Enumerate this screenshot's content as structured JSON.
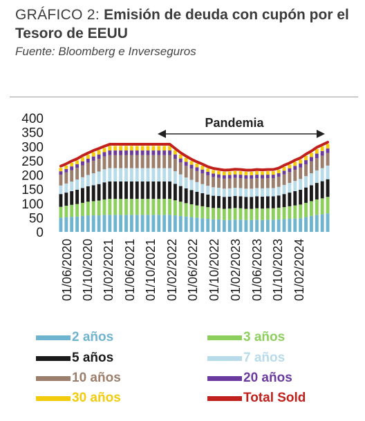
{
  "header": {
    "title_lead": "GRÁFICO 2: ",
    "title_rest": "Emisión de deuda con cupón por el Tesoro de EEUU",
    "source": "Fuente: Bloomberg e Inverseguros"
  },
  "chart_data": {
    "type": "bar",
    "stacked": true,
    "yticks": [
      0,
      50,
      100,
      150,
      200,
      250,
      300,
      350,
      400
    ],
    "ylim": [
      0,
      400
    ],
    "xtick_labels": [
      "01/06/2020",
      "01/10/2020",
      "01/02/2021",
      "01/06/2021",
      "01/10/2021",
      "01/02/2022",
      "01/06/2022",
      "01/10/2022",
      "01/02/2023",
      "01/06/2023",
      "01/10/2023",
      "01/02/2024"
    ],
    "annotation": "Pandemia",
    "series": [
      {
        "name": "2 años",
        "color": "#6fb4cf",
        "values": [
          50,
          52,
          53,
          54,
          56,
          58,
          58,
          58,
          60,
          60,
          60,
          60,
          60,
          60,
          60,
          60,
          60,
          60,
          60,
          60,
          60,
          58,
          56,
          54,
          52,
          50,
          48,
          46,
          44,
          44,
          42,
          42,
          43,
          43,
          42,
          42,
          43,
          42,
          43,
          43,
          44,
          45,
          46,
          47,
          48,
          52,
          56,
          60,
          62,
          65
        ]
      },
      {
        "name": "3 años",
        "color": "#8dcf5c",
        "values": [
          38,
          40,
          42,
          44,
          46,
          48,
          50,
          52,
          54,
          56,
          56,
          56,
          56,
          56,
          56,
          56,
          56,
          56,
          56,
          56,
          56,
          53,
          50,
          47,
          45,
          43,
          42,
          41,
          40,
          40,
          39,
          40,
          41,
          40,
          39,
          39,
          40,
          40,
          40,
          40,
          41,
          42,
          44,
          46,
          48,
          50,
          52,
          54,
          56,
          58
        ]
      },
      {
        "name": "5 años",
        "color": "#1a1a1a",
        "values": [
          45,
          46,
          48,
          50,
          52,
          54,
          56,
          58,
          60,
          61,
          61,
          61,
          61,
          61,
          61,
          61,
          61,
          61,
          61,
          61,
          61,
          58,
          55,
          52,
          50,
          48,
          46,
          44,
          43,
          42,
          42,
          42,
          42,
          42,
          42,
          42,
          42,
          42,
          42,
          42,
          43,
          46,
          48,
          50,
          52,
          54,
          56,
          58,
          60,
          62
        ]
      },
      {
        "name": "7 años",
        "color": "#b8dbe9",
        "values": [
          30,
          32,
          34,
          36,
          38,
          40,
          42,
          44,
          46,
          47,
          47,
          47,
          47,
          47,
          47,
          47,
          47,
          47,
          47,
          47,
          47,
          44,
          41,
          38,
          36,
          34,
          32,
          31,
          30,
          29,
          29,
          29,
          29,
          29,
          29,
          29,
          29,
          29,
          29,
          29,
          30,
          32,
          34,
          36,
          38,
          40,
          42,
          44,
          46,
          48
        ]
      },
      {
        "name": "10 años",
        "color": "#9c7e6c",
        "values": [
          38,
          39,
          40,
          41,
          42,
          43,
          44,
          45,
          45,
          46,
          46,
          46,
          46,
          46,
          46,
          46,
          46,
          46,
          46,
          46,
          46,
          44,
          42,
          41,
          40,
          39,
          38,
          37,
          36,
          35,
          35,
          35,
          35,
          35,
          35,
          35,
          35,
          35,
          35,
          35,
          36,
          37,
          38,
          39,
          40,
          41,
          42,
          43,
          44,
          44
        ]
      },
      {
        "name": "20 años",
        "color": "#6a3a9e",
        "values": [
          12,
          12,
          13,
          13,
          14,
          14,
          15,
          15,
          15,
          16,
          16,
          16,
          16,
          16,
          16,
          16,
          16,
          16,
          16,
          16,
          16,
          15,
          14,
          14,
          13,
          13,
          13,
          12,
          12,
          12,
          12,
          12,
          12,
          12,
          12,
          12,
          12,
          12,
          12,
          12,
          12,
          13,
          13,
          14,
          14,
          15,
          15,
          16,
          16,
          16
        ]
      },
      {
        "name": "30 años",
        "color": "#f2cc0c",
        "values": [
          12,
          12,
          13,
          13,
          14,
          14,
          15,
          15,
          15,
          16,
          16,
          16,
          16,
          16,
          16,
          16,
          16,
          16,
          16,
          16,
          16,
          15,
          14,
          14,
          13,
          13,
          13,
          12,
          12,
          12,
          12,
          12,
          12,
          12,
          12,
          12,
          12,
          12,
          12,
          12,
          12,
          13,
          13,
          14,
          14,
          15,
          15,
          16,
          16,
          16
        ]
      }
    ],
    "total_series": {
      "name": "Total Sold",
      "color": "#c0211c"
    }
  },
  "legend": [
    {
      "label": "2 años",
      "color": "#6fb4cf"
    },
    {
      "label": "3 años",
      "color": "#8dcf5c"
    },
    {
      "label": "5 años",
      "color": "#1a1a1a"
    },
    {
      "label": "7 años",
      "color": "#b8dbe9"
    },
    {
      "label": "10 años",
      "color": "#9c7e6c"
    },
    {
      "label": "20 años",
      "color": "#6a3a9e"
    },
    {
      "label": "30 años",
      "color": "#f2cc0c"
    },
    {
      "label": "Total Sold",
      "color": "#c0211c"
    }
  ]
}
